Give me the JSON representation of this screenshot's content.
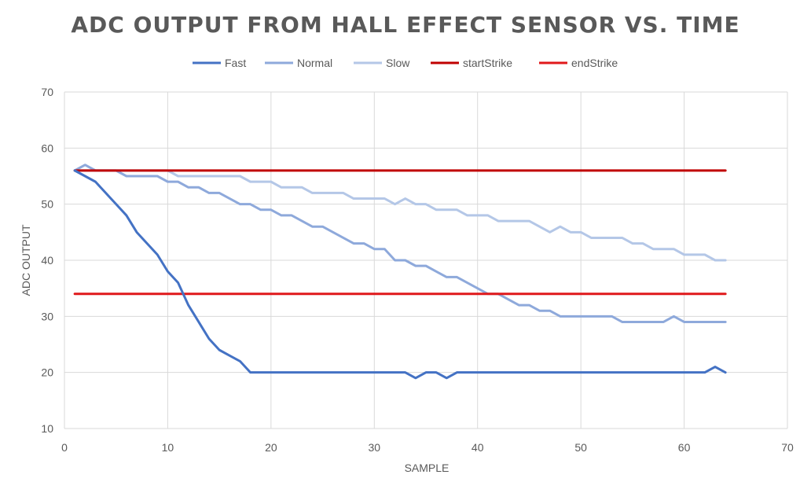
{
  "chart_data": {
    "type": "line",
    "title": "ADC OUTPUT FROM HALL EFFECT SENSOR VS. TIME",
    "xlabel": "SAMPLE",
    "ylabel": "ADC OUTPUT",
    "xlim": [
      0,
      70
    ],
    "ylim": [
      10,
      70
    ],
    "xticks": [
      0,
      10,
      20,
      30,
      40,
      50,
      60,
      70
    ],
    "yticks": [
      10,
      20,
      30,
      40,
      50,
      60,
      70
    ],
    "grid": true,
    "legend_position": "top",
    "series": [
      {
        "name": "Fast",
        "color": "#4472C4",
        "x": [
          1,
          2,
          3,
          4,
          5,
          6,
          7,
          8,
          9,
          10,
          11,
          12,
          13,
          14,
          15,
          16,
          17,
          18,
          19,
          20,
          21,
          22,
          23,
          24,
          25,
          26,
          27,
          28,
          29,
          30,
          31,
          32,
          33,
          34,
          35,
          36,
          37,
          38,
          39,
          40,
          41,
          42,
          43,
          44,
          45,
          46,
          47,
          48,
          49,
          50,
          51,
          52,
          53,
          54,
          55,
          56,
          57,
          58,
          59,
          60,
          61,
          62,
          63,
          64
        ],
        "y": [
          56,
          55,
          54,
          52,
          50,
          48,
          45,
          43,
          41,
          38,
          36,
          32,
          29,
          26,
          24,
          23,
          22,
          20,
          20,
          20,
          20,
          20,
          20,
          20,
          20,
          20,
          20,
          20,
          20,
          20,
          20,
          20,
          20,
          19,
          20,
          20,
          19,
          20,
          20,
          20,
          20,
          20,
          20,
          20,
          20,
          20,
          20,
          20,
          20,
          20,
          20,
          20,
          20,
          20,
          20,
          20,
          20,
          20,
          20,
          20,
          20,
          20,
          21,
          20
        ]
      },
      {
        "name": "Normal",
        "color": "#8EA9DB",
        "x": [
          1,
          2,
          3,
          4,
          5,
          6,
          7,
          8,
          9,
          10,
          11,
          12,
          13,
          14,
          15,
          16,
          17,
          18,
          19,
          20,
          21,
          22,
          23,
          24,
          25,
          26,
          27,
          28,
          29,
          30,
          31,
          32,
          33,
          34,
          35,
          36,
          37,
          38,
          39,
          40,
          41,
          42,
          43,
          44,
          45,
          46,
          47,
          48,
          49,
          50,
          51,
          52,
          53,
          54,
          55,
          56,
          57,
          58,
          59,
          60,
          61,
          62,
          63,
          64
        ],
        "y": [
          56,
          57,
          56,
          56,
          56,
          55,
          55,
          55,
          55,
          54,
          54,
          53,
          53,
          52,
          52,
          51,
          50,
          50,
          49,
          49,
          48,
          48,
          47,
          46,
          46,
          45,
          44,
          43,
          43,
          42,
          42,
          40,
          40,
          39,
          39,
          38,
          37,
          37,
          36,
          35,
          34,
          34,
          33,
          32,
          32,
          31,
          31,
          30,
          30,
          30,
          30,
          30,
          30,
          29,
          29,
          29,
          29,
          29,
          30,
          29,
          29,
          29,
          29,
          29
        ]
      },
      {
        "name": "Slow",
        "color": "#B4C7E7",
        "x": [
          1,
          2,
          3,
          4,
          5,
          6,
          7,
          8,
          9,
          10,
          11,
          12,
          13,
          14,
          15,
          16,
          17,
          18,
          19,
          20,
          21,
          22,
          23,
          24,
          25,
          26,
          27,
          28,
          29,
          30,
          31,
          32,
          33,
          34,
          35,
          36,
          37,
          38,
          39,
          40,
          41,
          42,
          43,
          44,
          45,
          46,
          47,
          48,
          49,
          50,
          51,
          52,
          53,
          54,
          55,
          56,
          57,
          58,
          59,
          60,
          61,
          62,
          63,
          64
        ],
        "y": [
          56,
          56,
          56,
          56,
          56,
          56,
          56,
          56,
          56,
          56,
          55,
          55,
          55,
          55,
          55,
          55,
          55,
          54,
          54,
          54,
          53,
          53,
          53,
          52,
          52,
          52,
          52,
          51,
          51,
          51,
          51,
          50,
          51,
          50,
          50,
          49,
          49,
          49,
          48,
          48,
          48,
          47,
          47,
          47,
          47,
          46,
          45,
          46,
          45,
          45,
          44,
          44,
          44,
          44,
          43,
          43,
          42,
          42,
          42,
          41,
          41,
          41,
          40,
          40
        ]
      },
      {
        "name": "startStrike",
        "color": "#C00000",
        "x": [
          1,
          64
        ],
        "y": [
          56,
          56
        ]
      },
      {
        "name": "endStrike",
        "color": "#E0191B",
        "x": [
          1,
          64
        ],
        "y": [
          34,
          34
        ]
      }
    ]
  }
}
